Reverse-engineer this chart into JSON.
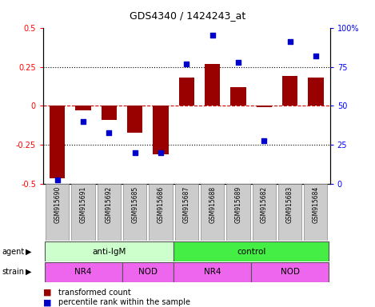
{
  "title": "GDS4340 / 1424243_at",
  "samples": [
    "GSM915690",
    "GSM915691",
    "GSM915692",
    "GSM915685",
    "GSM915686",
    "GSM915687",
    "GSM915688",
    "GSM915689",
    "GSM915682",
    "GSM915683",
    "GSM915684"
  ],
  "bar_values": [
    -0.46,
    -0.03,
    -0.09,
    -0.17,
    -0.31,
    0.18,
    0.27,
    0.12,
    -0.01,
    0.19,
    0.18
  ],
  "scatter_values": [
    3,
    40,
    33,
    20,
    20,
    77,
    95,
    78,
    28,
    91,
    82
  ],
  "ylim_left": [
    -0.5,
    0.5
  ],
  "ylim_right": [
    0,
    100
  ],
  "yticks_left": [
    -0.5,
    -0.25,
    0,
    0.25,
    0.5
  ],
  "yticks_right": [
    0,
    25,
    50,
    75,
    100
  ],
  "ytick_labels_left": [
    "-0.5",
    "-0.25",
    "0",
    "0.25",
    "0.5"
  ],
  "ytick_labels_right": [
    "0",
    "25",
    "50",
    "75",
    "100%"
  ],
  "bar_color": "#990000",
  "scatter_color": "#0000cc",
  "dashed_line_color": "#cc0000",
  "dotted_line_color": "#000000",
  "agent_groups": [
    {
      "label": "anti-IgM",
      "start": 0,
      "end": 5,
      "color": "#ccffcc"
    },
    {
      "label": "control",
      "start": 5,
      "end": 11,
      "color": "#44ee44"
    }
  ],
  "strain_groups": [
    {
      "label": "NR4",
      "start": 0,
      "end": 3,
      "color": "#ee66ee"
    },
    {
      "label": "NOD",
      "start": 3,
      "end": 5,
      "color": "#ee66ee"
    },
    {
      "label": "NR4",
      "start": 5,
      "end": 8,
      "color": "#ee66ee"
    },
    {
      "label": "NOD",
      "start": 8,
      "end": 11,
      "color": "#ee66ee"
    }
  ],
  "sample_box_color": "#cccccc",
  "legend_bar_label": "transformed count",
  "legend_scatter_label": "percentile rank within the sample",
  "agent_label": "agent",
  "strain_label": "strain"
}
